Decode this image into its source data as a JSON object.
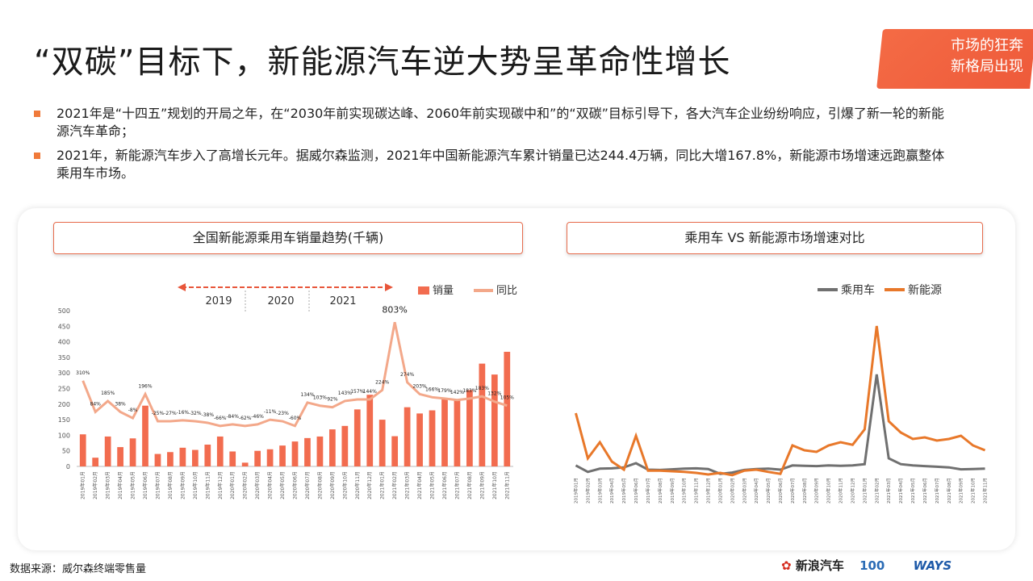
{
  "title": "“双碳”目标下，新能源汽车逆大势呈革命性增长",
  "corner_badge": {
    "line1": "市场的狂奔",
    "line2": "新格局出现"
  },
  "bullets": [
    "2021年是“十四五”规划的开局之年，在“2030年前实现碳达峰、2060年前实现碳中和”的“双碳”目标引导下，各大汽车企业纷纷响应，引爆了新一轮的新能源汽车革命；",
    "2021年，新能源汽车步入了高增长元年。据威尔森监测，2021年中国新能源汽车累计销量已达244.4万辆，同比大增167.8%，新能源市场增速远跑赢整体乘用车市场。"
  ],
  "left_panel_title": "全国新能源乘用车销量趋势(千辆)",
  "right_panel_title": "乘用车 VS 新能源市场增速对比",
  "year_labels": [
    "2019",
    "2020",
    "2021"
  ],
  "source": "数据来源：威尔森终端零售量",
  "logos": {
    "sina": "新浪汽车",
    "ways": "WAYS"
  },
  "colors": {
    "accent": "#f07a3a",
    "bar": "#f26c4f",
    "yoy_line": "#f3a88a",
    "pv_line": "#707070",
    "nev_line": "#e8782a",
    "grid": "#dddddd"
  },
  "chart_data": [
    {
      "type": "bar",
      "title": "全国新能源乘用车销量趋势(千辆)",
      "categories": [
        "2019年01月",
        "2019年02月",
        "2019年03月",
        "2019年04月",
        "2019年05月",
        "2019年06月",
        "2019年07月",
        "2019年08月",
        "2019年09月",
        "2019年10月",
        "2019年11月",
        "2019年12月",
        "2020年01月",
        "2020年02月",
        "2020年03月",
        "2020年04月",
        "2020年05月",
        "2020年06月",
        "2020年07月",
        "2020年08月",
        "2020年09月",
        "2020年10月",
        "2020年11月",
        "2020年12月",
        "2021年01月",
        "2021年02月",
        "2021年03月",
        "2021年04月",
        "2021年05月",
        "2021年06月",
        "2021年07月",
        "2021年08月",
        "2021年09月",
        "2021年10月",
        "2021年11月"
      ],
      "ylim": [
        0,
        500
      ],
      "yticks": [
        0,
        50,
        100,
        150,
        200,
        250,
        300,
        350,
        400,
        450,
        500
      ],
      "series": [
        {
          "name": "销量",
          "kind": "bar",
          "values": [
            103,
            28,
            96,
            62,
            90,
            195,
            40,
            46,
            60,
            53,
            70,
            96,
            48,
            12,
            50,
            55,
            67,
            80,
            91,
            96,
            119,
            130,
            183,
            230,
            150,
            97,
            190,
            170,
            180,
            220,
            215,
            245,
            330,
            295,
            368
          ]
        },
        {
          "name": "同比",
          "kind": "line",
          "values": [
            275,
            175,
            210,
            175,
            155,
            232,
            145,
            145,
            148,
            145,
            140,
            130,
            135,
            130,
            135,
            150,
            145,
            130,
            205,
            195,
            190,
            210,
            215,
            215,
            245,
            463,
            270,
            232,
            222,
            218,
            213,
            218,
            225,
            208,
            195
          ],
          "labels": [
            "310%",
            "84%",
            "185%",
            "38%",
            "-8%",
            "196%",
            "-25%",
            "-27%",
            "-16%",
            "-32%",
            "-38%",
            "-66%",
            "-84%",
            "-62%",
            "-46%",
            "-11%",
            "-23%",
            "-60%",
            "134%",
            "103%",
            "92%",
            "143%",
            "157%",
            "144%",
            "224%",
            "803%",
            "274%",
            "203%",
            "166%",
            "179%",
            "142%",
            "183%",
            "183%",
            "132%",
            "105%"
          ]
        }
      ]
    },
    {
      "type": "line",
      "title": "乘用车 VS 新能源市场增速对比",
      "categories": [
        "2019年01月",
        "2019年02月",
        "2019年03月",
        "2019年04月",
        "2019年05月",
        "2019年06月",
        "2019年07月",
        "2019年08月",
        "2019年09月",
        "2019年10月",
        "2019年11月",
        "2019年12月",
        "2020年01月",
        "2020年02月",
        "2020年03月",
        "2020年04月",
        "2020年05月",
        "2020年06月",
        "2020年07月",
        "2020年08月",
        "2020年09月",
        "2020年10月",
        "2020年11月",
        "2020年12月",
        "2021年01月",
        "2021年02月",
        "2021年03月",
        "2021年04月",
        "2021年05月",
        "2021年06月",
        "2021年07月",
        "2021年08月",
        "2021年09月",
        "2021年10月",
        "2021年11月"
      ],
      "series": [
        {
          "name": "乘用车",
          "values": [
            8,
            -12,
            -2,
            -1,
            2,
            15,
            -5,
            -6,
            -4,
            -2,
            -1,
            -3,
            -18,
            -14,
            -6,
            -3,
            -2,
            -5,
            8,
            7,
            6,
            8,
            7,
            8,
            12,
            290,
            30,
            12,
            8,
            6,
            4,
            2,
            -4,
            -3,
            -2
          ]
        },
        {
          "name": "新能源",
          "values": [
            170,
            30,
            80,
            20,
            -5,
            100,
            -8,
            -8,
            -10,
            -12,
            -15,
            -20,
            -15,
            -22,
            -8,
            -5,
            -12,
            -18,
            70,
            55,
            50,
            70,
            80,
            72,
            120,
            440,
            145,
            110,
            90,
            95,
            85,
            90,
            100,
            70,
            55
          ]
        }
      ]
    }
  ]
}
